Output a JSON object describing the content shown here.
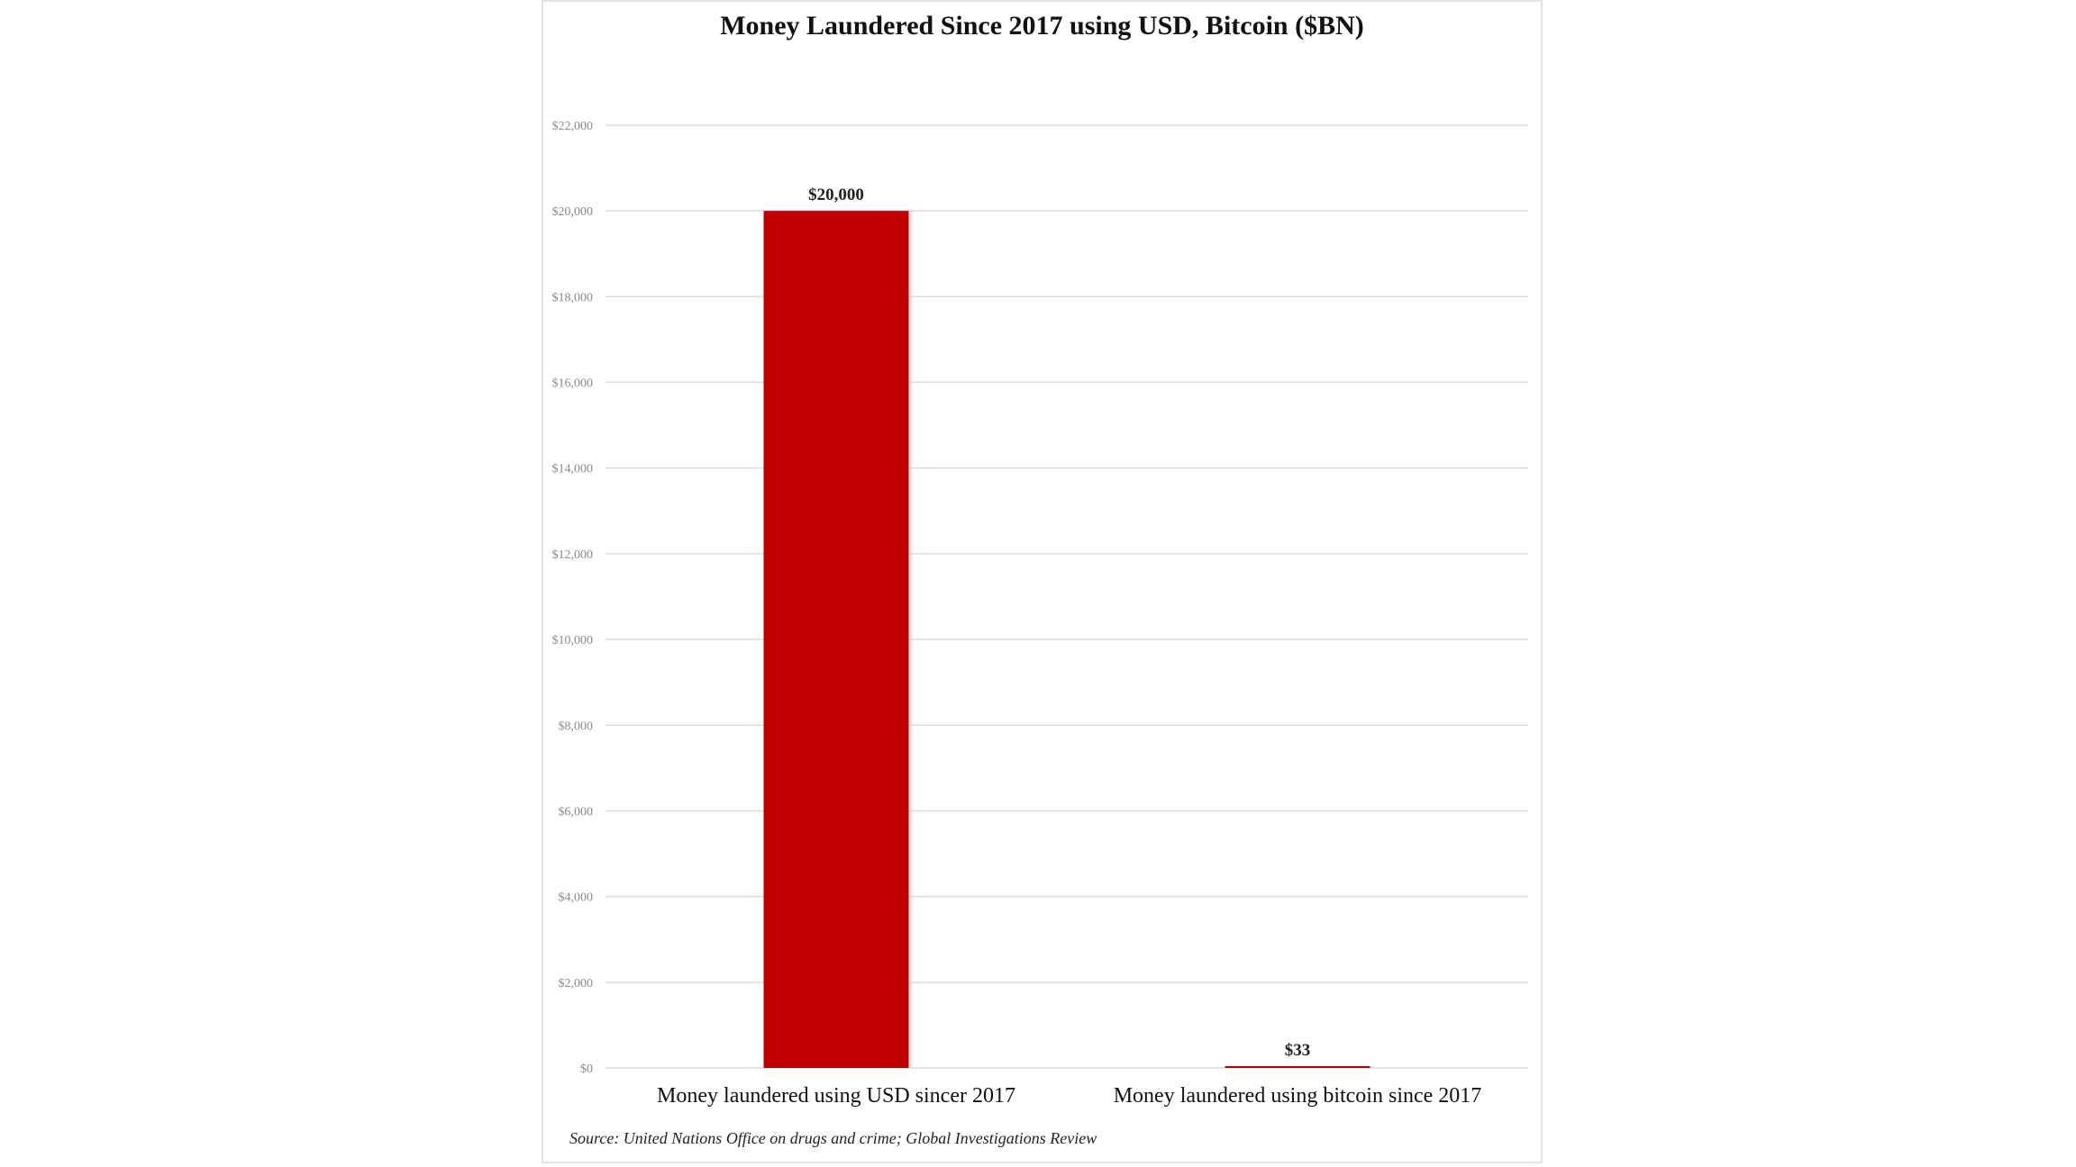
{
  "chart_data": {
    "type": "bar",
    "title": "Money Laundered Since 2017 using USD, Bitcoin ($BN)",
    "categories": [
      "Money laundered using USD sincer 2017",
      "Money laundered using bitcoin since 2017"
    ],
    "values": [
      20000,
      33
    ],
    "data_labels": [
      "$20,000",
      "$33"
    ],
    "xlabel": "",
    "ylabel": "",
    "ylim": [
      0,
      22000
    ],
    "yticks": [
      0,
      2000,
      4000,
      6000,
      8000,
      10000,
      12000,
      14000,
      16000,
      18000,
      20000,
      22000
    ],
    "ytick_labels": [
      "$0",
      "$2,000",
      "$4,000",
      "$6,000",
      "$8,000",
      "$10,000",
      "$12,000",
      "$14,000",
      "$16,000",
      "$18,000",
      "$20,000",
      "$22,000"
    ],
    "grid": true,
    "bar_color": "#c00000",
    "source": "Source: United Nations Office on drugs and crime; Global Investigations Review"
  }
}
